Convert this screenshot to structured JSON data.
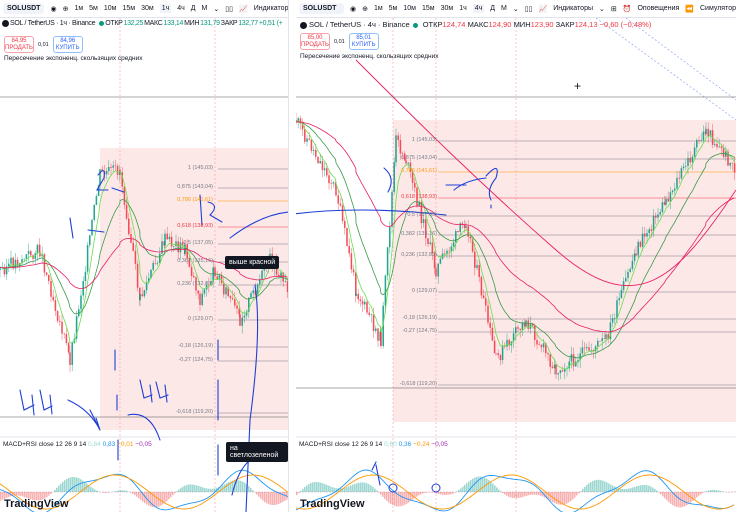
{
  "toolbar": {
    "timeframes": [
      "1м",
      "5м",
      "10м",
      "15м",
      "30м",
      "1ч",
      "4ч",
      "Д",
      "М"
    ],
    "indicators": "Индикаторы",
    "alerts": "Оповещения",
    "replay": "Симулятор"
  },
  "left": {
    "symbol": "SOLUSDT",
    "title": "SOL / TetherUS · 1ч · Binance",
    "o_label": "ОТКР",
    "o": "132,25",
    "h_label": "МАКС",
    "h": "133,14",
    "l_label": "МИН",
    "l": "131,79",
    "c_label": "ЗАКР",
    "c": "132,77",
    "chg": "+0,51 (+",
    "sell": {
      "price": "84,95",
      "label": "ПРОДАТЬ"
    },
    "spread": "0,01",
    "buy": {
      "price": "84,96",
      "label": "КУПИТЬ"
    },
    "indicator": "Пересечение экспоненц. скользящих средних",
    "macd": {
      "label": "MACD+RSI close 12 26 9 14",
      "v1": "0,84",
      "v2": "0,83",
      "v3": "−0,01",
      "v4": "−0,05"
    },
    "tooltip_red": "выше красной",
    "tooltip_green": "на светлозеленой",
    "fib": [
      {
        "l": "1 (145,03)",
        "c": "#787b86"
      },
      {
        "l": "0,875 (143,04)",
        "c": "#787b86"
      },
      {
        "l": "0,786 (141,61)",
        "c": "#ff9800"
      },
      {
        "l": "0,618 (138,93)",
        "c": "#f23645"
      },
      {
        "l": "0,5 (137,05)",
        "c": "#787b86"
      },
      {
        "l": "0,382 (135,16)",
        "c": "#787b86"
      },
      {
        "l": "0,236 (132,83)",
        "c": "#787b86"
      },
      {
        "l": "0 (129,07)",
        "c": "#787b86"
      },
      {
        "l": "-0,18 (126,19)",
        "c": "#787b86"
      },
      {
        "l": "-0,27 (124,75)",
        "c": "#787b86"
      },
      {
        "l": "-0,618 (119,20)",
        "c": "#787b86"
      }
    ]
  },
  "right": {
    "symbol": "SOLUSDT",
    "title": "SOL / TetherUS · 4ч · Binance",
    "o_label": "ОТКР",
    "o": "124,74",
    "h_label": "МАКС",
    "h": "124,90",
    "l_label": "МИН",
    "l": "123,90",
    "c_label": "ЗАКР",
    "c": "124,13",
    "chg": "−0,60 (−0,48%)",
    "sell": {
      "price": "85,00",
      "label": "ПРОДАТЬ"
    },
    "spread": "0,01",
    "buy": {
      "price": "85,01",
      "label": "КУПИТЬ"
    },
    "indicator": "Пересечение экспоненц. скользящих средних",
    "macd": {
      "label": "MACD+RSI close 12 26 9 14",
      "v1": "0,60",
      "v2": "0,36",
      "v3": "−0,24",
      "v4": "−0,05"
    },
    "fib": [
      {
        "l": "1 (145,03)",
        "c": "#787b86"
      },
      {
        "l": "0,875 (143,04)",
        "c": "#787b86"
      },
      {
        "l": "0,786 (141,61)",
        "c": "#ff9800"
      },
      {
        "l": "0,618 (138,93)",
        "c": "#f23645"
      },
      {
        "l": "0,5 (137,05)",
        "c": "#787b86"
      },
      {
        "l": "0,382 (135,16)",
        "c": "#787b86"
      },
      {
        "l": "0,236 (132,83)",
        "c": "#787b86"
      },
      {
        "l": "0 (129,07)",
        "c": "#787b86"
      },
      {
        "l": "-0,18 (126,19)",
        "c": "#787b86"
      },
      {
        "l": "-0,27 (124,75)",
        "c": "#787b86"
      },
      {
        "l": "-0,618 (119,20)",
        "c": "#787b86"
      }
    ]
  },
  "annotations": {
    "left": [
      "1",
      "2",
      "4ч",
      "4ч",
      "R",
      "L"
    ],
    "right": [
      "1",
      "2",
      "?"
    ]
  },
  "brand": "TradingView",
  "colors": {
    "up": "#089981",
    "down": "#f23645",
    "fib_bg": "#fde8e8",
    "ema_fast": "#4caf50",
    "ema_slow": "#e91e63",
    "macd": "#2196f3",
    "signal": "#ff9800",
    "annotation": "#1e3fd6"
  }
}
